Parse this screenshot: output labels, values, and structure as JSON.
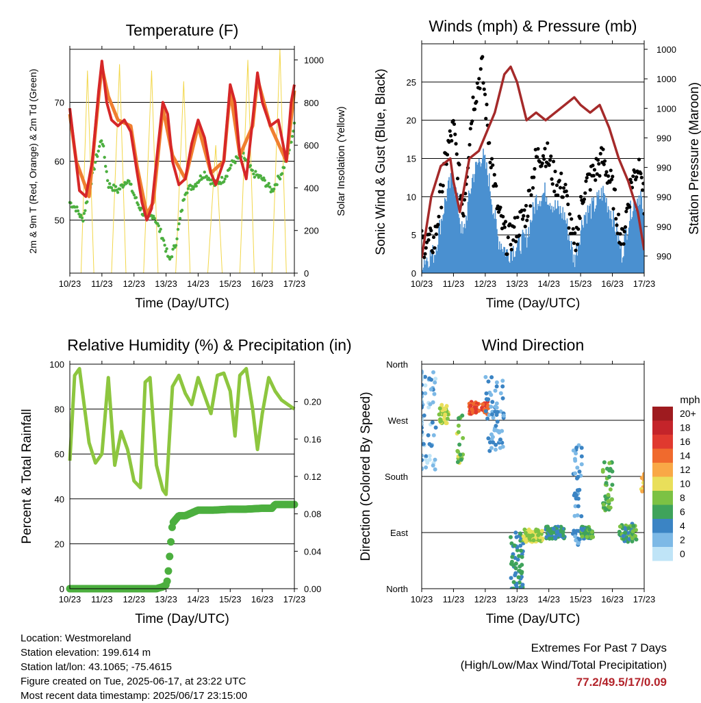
{
  "chart_data": [
    {
      "type": "line",
      "title": "Temperature (F)",
      "xlabel": "Time (Day/UTC)",
      "ylabel": "2m & 9m T (Red, Orange) & 2m Td (Green)",
      "ylabel_right": "Solar Insolation (Yellow)",
      "x_ticks": [
        "10/23",
        "11/23",
        "12/23",
        "13/23",
        "14/23",
        "15/23",
        "16/23",
        "17/23"
      ],
      "ylim": [
        41,
        79
      ],
      "y_ticks": [
        50,
        60,
        70
      ],
      "y2lim": [
        0,
        1050
      ],
      "y2_ticks": [
        0,
        200,
        400,
        600,
        800,
        1000
      ],
      "grid": true,
      "series": [
        {
          "name": "2m T",
          "color": "#d62728",
          "x": [
            0,
            0.15,
            0.3,
            0.5,
            0.7,
            0.9,
            1.0,
            1.15,
            1.3,
            1.5,
            1.7,
            1.9,
            2.1,
            2.25,
            2.4,
            2.55,
            2.7,
            2.9,
            3.05,
            3.2,
            3.4,
            3.6,
            3.8,
            4.0,
            4.2,
            4.4,
            4.55,
            4.8,
            5.0,
            5.15,
            5.3,
            5.5,
            5.7,
            5.85,
            6.0,
            6.25,
            6.5,
            6.75,
            6.9,
            7.0
          ],
          "values": [
            69,
            62,
            55,
            54,
            60,
            72,
            77,
            70,
            67,
            66,
            67,
            65,
            58,
            53,
            50,
            52,
            60,
            70,
            68,
            60,
            56,
            57,
            63,
            67,
            64,
            58,
            56,
            60,
            73,
            70,
            61,
            57,
            67,
            75,
            70,
            66,
            67,
            60,
            70,
            73
          ]
        },
        {
          "name": "9m T",
          "color": "#f07f30",
          "x": [
            0,
            0.2,
            0.4,
            0.6,
            0.9,
            1.0,
            1.2,
            1.5,
            1.9,
            2.1,
            2.4,
            2.6,
            2.9,
            3.2,
            3.6,
            4.0,
            4.4,
            4.8,
            5.0,
            5.3,
            5.7,
            5.85,
            6.25,
            6.75,
            7.0
          ],
          "values": [
            68,
            60,
            57,
            54,
            71,
            76,
            71,
            67,
            66,
            59,
            51,
            53,
            69,
            61,
            57,
            66,
            58,
            60,
            72,
            61,
            66,
            74,
            66,
            60,
            72
          ]
        },
        {
          "name": "2m Td",
          "color": "#4caf3f",
          "x": [
            0,
            0.2,
            0.4,
            0.6,
            0.8,
            1.0,
            1.2,
            1.5,
            1.8,
            2.1,
            2.4,
            2.6,
            2.9,
            3.1,
            3.3,
            3.6,
            3.9,
            4.2,
            4.5,
            4.8,
            5.1,
            5.4,
            5.7,
            6.0,
            6.3,
            6.6,
            6.8,
            7.0
          ],
          "values": [
            53,
            52,
            50,
            55,
            60,
            64,
            56,
            55,
            57,
            53,
            50,
            51,
            47,
            43,
            46,
            55,
            56,
            58,
            56,
            57,
            60,
            61,
            58,
            57,
            55,
            58,
            61,
            66
          ]
        },
        {
          "name": "Solar Insolation",
          "color": "#f2d648",
          "x": [
            0,
            0.35,
            0.55,
            0.75,
            1.0,
            1.3,
            1.55,
            1.75,
            2.0,
            2.3,
            2.55,
            2.75,
            3.0,
            3.3,
            3.55,
            3.75,
            4.0,
            4.3,
            4.55,
            4.75,
            5.0,
            5.3,
            5.55,
            5.75,
            6.0,
            6.3,
            6.55,
            6.75,
            7.0
          ],
          "values": [
            0,
            0,
            950,
            0,
            0,
            0,
            980,
            0,
            0,
            0,
            950,
            0,
            0,
            0,
            900,
            0,
            0,
            0,
            600,
            0,
            0,
            0,
            1000,
            0,
            0,
            0,
            1050,
            0,
            0
          ]
        }
      ]
    },
    {
      "type": "line",
      "title": "Winds (mph) & Pressure (mb)",
      "xlabel": "Time (Day/UTC)",
      "ylabel": "Sonic Wind & Gust (Blue, Black)",
      "ylabel_right": "Station Pressure (Maroon)",
      "x_ticks": [
        "10/23",
        "11/23",
        "12/23",
        "13/23",
        "14/23",
        "15/23",
        "16/23",
        "17/23"
      ],
      "ylim": [
        0,
        30
      ],
      "y_ticks": [
        0,
        5,
        10,
        15,
        20,
        25
      ],
      "y2_tick_labels": [
        "1000",
        "1000",
        "1000",
        "990",
        "990",
        "990",
        "990",
        "990"
      ],
      "grid": true,
      "series": [
        {
          "name": "Sonic Wind",
          "color": "#4a90d0",
          "x": [
            0,
            0.4,
            0.8,
            1.0,
            1.3,
            1.6,
            1.9,
            2.1,
            2.4,
            2.7,
            3.0,
            3.3,
            3.6,
            3.9,
            4.2,
            4.5,
            4.8,
            5.1,
            5.4,
            5.7,
            6.0,
            6.3,
            6.6,
            6.9,
            7.0
          ],
          "values": [
            1,
            2,
            10,
            12,
            4,
            12,
            15,
            12,
            4,
            2,
            3,
            4,
            9,
            10,
            8,
            7,
            1,
            7,
            8,
            10,
            7,
            2,
            8,
            10,
            4
          ]
        },
        {
          "name": "Gust",
          "color": "#000000",
          "x": [
            0,
            0.4,
            0.8,
            1.0,
            1.3,
            1.6,
            1.9,
            2.1,
            2.4,
            2.7,
            3.0,
            3.3,
            3.6,
            3.9,
            4.2,
            4.5,
            4.8,
            5.1,
            5.4,
            5.7,
            6.0,
            6.3,
            6.6,
            6.9,
            7.0
          ],
          "values": [
            4,
            4,
            16,
            19,
            8,
            22,
            27,
            18,
            8,
            4,
            6,
            8,
            15,
            16,
            12,
            11,
            3,
            11,
            13,
            15,
            11,
            4,
            12,
            15,
            8
          ]
        },
        {
          "name": "Station Pressure",
          "color": "#a52a2a",
          "x": [
            0,
            0.3,
            0.6,
            0.9,
            1.0,
            1.2,
            1.5,
            1.8,
            2.0,
            2.3,
            2.6,
            2.8,
            3.0,
            3.3,
            3.6,
            3.9,
            4.2,
            4.5,
            4.8,
            5.0,
            5.3,
            5.6,
            5.9,
            6.2,
            6.5,
            6.8,
            7.0
          ],
          "values": [
            2,
            10,
            14,
            15,
            12,
            8,
            15,
            16,
            18,
            21,
            26,
            27,
            25,
            20,
            21,
            20,
            21,
            22,
            23,
            22,
            21,
            22,
            19,
            15,
            12,
            8,
            3
          ]
        }
      ]
    },
    {
      "type": "line",
      "title": "Relative Humidity (%) & Precipitation (in)",
      "xlabel": "Time (Day/UTC)",
      "ylabel": "Percent & Total Rainfall",
      "x_ticks": [
        "10/23",
        "11/23",
        "12/23",
        "13/23",
        "14/23",
        "15/23",
        "16/23",
        "17/23"
      ],
      "ylim": [
        0,
        100
      ],
      "y_ticks": [
        0,
        20,
        40,
        60,
        80,
        100
      ],
      "y2lim": [
        0,
        0.24
      ],
      "y2_ticks": [
        "0.00",
        "0.04",
        "0.08",
        "0.12",
        "0.16",
        "0.20"
      ],
      "grid": true,
      "series": [
        {
          "name": "Relative Humidity",
          "color": "#8dc63f",
          "x": [
            0,
            0.15,
            0.3,
            0.6,
            0.8,
            1.0,
            1.2,
            1.4,
            1.6,
            1.8,
            2.0,
            2.2,
            2.35,
            2.5,
            2.7,
            2.9,
            3.0,
            3.2,
            3.4,
            3.6,
            3.8,
            4.0,
            4.2,
            4.4,
            4.6,
            4.8,
            5.0,
            5.15,
            5.3,
            5.5,
            5.7,
            5.85,
            6.0,
            6.2,
            6.4,
            6.6,
            6.8,
            7.0
          ],
          "values": [
            57,
            95,
            98,
            65,
            56,
            60,
            94,
            55,
            70,
            62,
            48,
            45,
            92,
            94,
            55,
            44,
            42,
            90,
            95,
            87,
            82,
            94,
            86,
            78,
            95,
            96,
            88,
            68,
            95,
            98,
            80,
            62,
            78,
            94,
            88,
            84,
            82,
            80
          ]
        },
        {
          "name": "Total Rainfall",
          "color": "#4caf3f",
          "x": [
            0,
            1.0,
            2.0,
            2.7,
            2.8,
            2.9,
            3.0,
            3.05,
            3.1,
            3.2,
            3.4,
            3.6,
            3.8,
            4.0,
            4.5,
            5.0,
            5.5,
            6.0,
            6.3,
            6.4,
            6.6,
            7.0
          ],
          "values": [
            0,
            0,
            0,
            0,
            0.001,
            0.002,
            0.004,
            0.01,
            0.03,
            0.07,
            0.078,
            0.078,
            0.081,
            0.084,
            0.084,
            0.085,
            0.085,
            0.086,
            0.086,
            0.09,
            0.09,
            0.09
          ]
        }
      ]
    },
    {
      "type": "scatter",
      "title": "Wind Direction",
      "xlabel": "Time (Day/UTC)",
      "ylabel": "Direction (Colored By Speed)",
      "x_ticks": [
        "10/23",
        "11/23",
        "12/23",
        "13/23",
        "14/23",
        "15/23",
        "16/23",
        "17/23"
      ],
      "y_tick_labels": [
        "North",
        "East",
        "South",
        "West",
        "North"
      ],
      "ylim": [
        0,
        360
      ],
      "legend": {
        "title": "mph",
        "placement": "right",
        "labels": [
          "20+",
          "18",
          "16",
          "14",
          "12",
          "10",
          "8",
          "6",
          "4",
          "2",
          "0"
        ],
        "colors": [
          "#9e1b1f",
          "#c4242a",
          "#e0392f",
          "#f06a2d",
          "#f9a846",
          "#e9df5a",
          "#7cc244",
          "#3fa35b",
          "#3b84c4",
          "#7db9e6",
          "#bfe4f7"
        ]
      },
      "clusters": [
        {
          "day": 0.05,
          "dir": 270,
          "spread_t": 0.4,
          "spread_d": 80,
          "speed": 2,
          "n": 70
        },
        {
          "day": 0.7,
          "dir": 280,
          "spread_t": 0.15,
          "spread_d": 15,
          "speed": 9,
          "n": 40
        },
        {
          "day": 1.2,
          "dir": 240,
          "spread_t": 0.1,
          "spread_d": 40,
          "speed": 8,
          "n": 20
        },
        {
          "day": 1.8,
          "dir": 290,
          "spread_t": 0.3,
          "spread_d": 10,
          "speed": 15,
          "n": 50
        },
        {
          "day": 2.3,
          "dir": 280,
          "spread_t": 0.3,
          "spread_d": 60,
          "speed": 3,
          "n": 60
        },
        {
          "day": 3.0,
          "dir": 40,
          "spread_t": 0.2,
          "spread_d": 50,
          "speed": 5,
          "n": 60
        },
        {
          "day": 3.5,
          "dir": 85,
          "spread_t": 0.3,
          "spread_d": 10,
          "speed": 9,
          "n": 70
        },
        {
          "day": 4.2,
          "dir": 90,
          "spread_t": 0.3,
          "spread_d": 10,
          "speed": 5,
          "n": 60
        },
        {
          "day": 4.9,
          "dir": 150,
          "spread_t": 0.15,
          "spread_d": 80,
          "speed": 3,
          "n": 45
        },
        {
          "day": 5.2,
          "dir": 90,
          "spread_t": 0.2,
          "spread_d": 10,
          "speed": 6,
          "n": 50
        },
        {
          "day": 5.85,
          "dir": 165,
          "spread_t": 0.15,
          "spread_d": 40,
          "speed": 7,
          "n": 40
        },
        {
          "day": 6.5,
          "dir": 90,
          "spread_t": 0.3,
          "spread_d": 15,
          "speed": 6,
          "n": 60
        },
        {
          "day": 6.95,
          "dir": 170,
          "spread_t": 0.05,
          "spread_d": 15,
          "speed": 11,
          "n": 12
        }
      ]
    }
  ],
  "footer": {
    "location": "Location: Westmoreland",
    "elevation": "Station elevation: 199.614 m",
    "latlon": "Station lat/lon: 43.1065; -75.4615",
    "created": "Figure created on Tue, 2025-06-17, at 23:22 UTC",
    "recent": "Most recent data timestamp: 2025/06/17 23:15:00",
    "extremes_title": "Extremes For Past 7 Days",
    "extremes_subtitle": "(High/Low/Max Wind/Total Precipitation)",
    "extremes_values": "77.2/49.5/17/0.09"
  }
}
